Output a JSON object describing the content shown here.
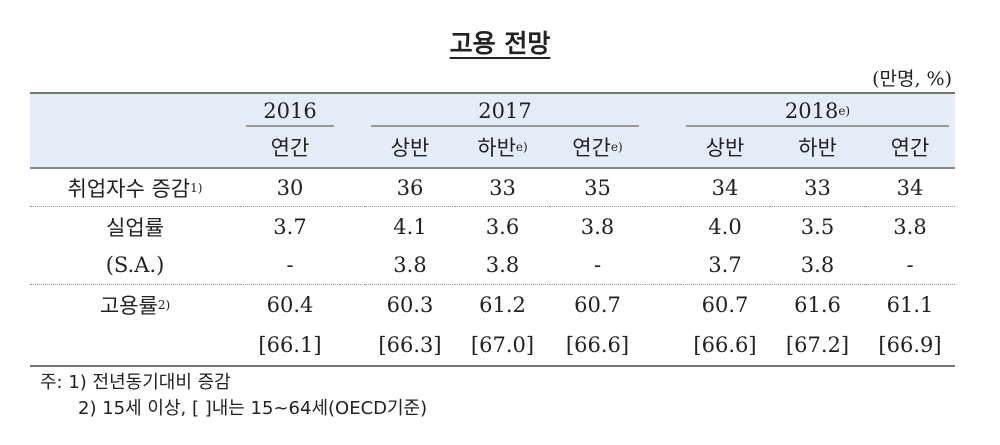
{
  "title": "고용 전망",
  "unit": "(만명, %)",
  "years": {
    "y2016": "2016",
    "y2017": "2017",
    "y2018": "2018",
    "y2018_sup": "e)"
  },
  "periods": [
    {
      "label": "연간",
      "sup": ""
    },
    {
      "label": "상반",
      "sup": ""
    },
    {
      "label": "하반",
      "sup": "e)"
    },
    {
      "label": "연간",
      "sup": "e)"
    },
    {
      "label": "상반",
      "sup": ""
    },
    {
      "label": "하반",
      "sup": ""
    },
    {
      "label": "연간",
      "sup": ""
    }
  ],
  "rows": [
    {
      "label": "취업자수 증감",
      "sup": "1)",
      "values": [
        "30",
        "36",
        "33",
        "35",
        "34",
        "33",
        "34"
      ]
    },
    {
      "label": "실업률",
      "sup": "",
      "values": [
        "3.7",
        "4.1",
        "3.6",
        "3.8",
        "4.0",
        "3.5",
        "3.8"
      ]
    },
    {
      "label": "(S.A.)",
      "sup": "",
      "values": [
        "-",
        "3.8",
        "3.8",
        "-",
        "3.7",
        "3.8",
        "-"
      ]
    },
    {
      "label": "고용률",
      "sup": "2)",
      "values": [
        "60.4",
        "60.3",
        "61.2",
        "60.7",
        "60.7",
        "61.6",
        "61.1"
      ]
    },
    {
      "label": "",
      "sup": "",
      "values": [
        "[66.1]",
        "[66.3]",
        "[67.0]",
        "[66.6]",
        "[66.6]",
        "[67.2]",
        "[66.9]"
      ]
    }
  ],
  "notes": [
    "주: 1) 전년동기대비 증감",
    "2) 15세 이상, [   ]내는 15~64세(OECD기준)"
  ]
}
